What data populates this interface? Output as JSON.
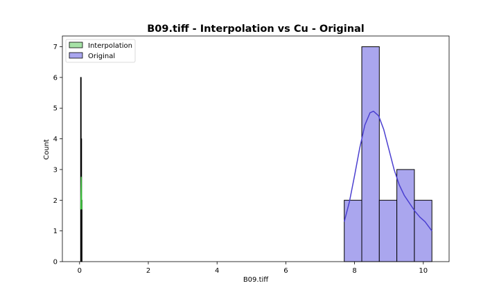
{
  "chart_data": {
    "type": "histogram",
    "title": "B09.tiff - Interpolation vs Cu - Original",
    "xlabel": "B09.tiff",
    "ylabel": "Count",
    "xlim": [
      -0.5,
      10.75
    ],
    "ylim": [
      0,
      7.35
    ],
    "xticks": [
      0,
      2,
      4,
      6,
      8,
      10
    ],
    "yticks": [
      0,
      1,
      2,
      3,
      4,
      5,
      6,
      7
    ],
    "legend_position": "upper-left",
    "colors": {
      "interpolation_fill": "#a6e2a6",
      "interpolation_line": "#3fbf3f",
      "original_fill": "#aaa6ee",
      "original_line": "#4a3fd0",
      "bar_edge": "#000000"
    },
    "series": [
      {
        "name": "Interpolation",
        "color": "#3fbf3f",
        "bins": [
          {
            "x0": 0.03,
            "x1": 0.042,
            "count": 6
          },
          {
            "x0": 0.042,
            "x1": 0.054,
            "count": 4
          },
          {
            "x0": 0.054,
            "x1": 0.066,
            "count": 2
          }
        ],
        "kde": [
          {
            "x": 0.035,
            "y": 1.7
          },
          {
            "x": 0.045,
            "y": 2.4
          },
          {
            "x": 0.05,
            "y": 2.75
          },
          {
            "x": 0.055,
            "y": 2.4
          },
          {
            "x": 0.065,
            "y": 1.7
          }
        ]
      },
      {
        "name": "Original",
        "color": "#4a3fd0",
        "bins": [
          {
            "x0": 7.7,
            "x1": 8.21,
            "count": 2
          },
          {
            "x0": 8.21,
            "x1": 8.72,
            "count": 7
          },
          {
            "x0": 8.72,
            "x1": 9.23,
            "count": 2
          },
          {
            "x0": 9.23,
            "x1": 9.74,
            "count": 3
          },
          {
            "x0": 9.74,
            "x1": 10.25,
            "count": 2
          }
        ],
        "kde": [
          {
            "x": 7.7,
            "y": 1.3
          },
          {
            "x": 7.85,
            "y": 1.95
          },
          {
            "x": 8.0,
            "y": 2.8
          },
          {
            "x": 8.15,
            "y": 3.7
          },
          {
            "x": 8.3,
            "y": 4.45
          },
          {
            "x": 8.45,
            "y": 4.85
          },
          {
            "x": 8.55,
            "y": 4.9
          },
          {
            "x": 8.7,
            "y": 4.75
          },
          {
            "x": 8.85,
            "y": 4.3
          },
          {
            "x": 9.0,
            "y": 3.65
          },
          {
            "x": 9.15,
            "y": 3.0
          },
          {
            "x": 9.3,
            "y": 2.5
          },
          {
            "x": 9.45,
            "y": 2.15
          },
          {
            "x": 9.6,
            "y": 1.9
          },
          {
            "x": 9.75,
            "y": 1.65
          },
          {
            "x": 9.9,
            "y": 1.45
          },
          {
            "x": 10.05,
            "y": 1.3
          },
          {
            "x": 10.25,
            "y": 1.0
          }
        ]
      }
    ]
  }
}
